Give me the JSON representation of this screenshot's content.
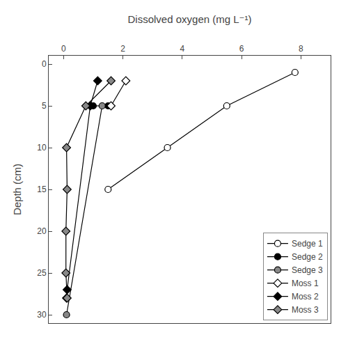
{
  "chart_data": {
    "type": "line",
    "xlabel": "Dissolved oxygen (mg L⁻¹)",
    "ylabel": "Depth (cm)",
    "xlim": [
      -0.5,
      9
    ],
    "ylim": [
      31,
      -1
    ],
    "xticks": [
      0,
      2,
      4,
      6,
      8
    ],
    "yticks": [
      0,
      5,
      10,
      15,
      20,
      25,
      30
    ],
    "grid": false,
    "legend": "lower right",
    "series": [
      {
        "name": "Sedge 1",
        "x": [
          7.8,
          5.5,
          3.5,
          1.5
        ],
        "values": [
          1,
          5,
          10,
          15
        ],
        "marker": "circle",
        "color": "white",
        "line_style": "solid"
      },
      {
        "name": "Sedge 2",
        "x": [
          1.5,
          1.0
        ],
        "values": [
          5,
          5
        ],
        "marker": "circle",
        "color": "black",
        "line_style": "solid"
      },
      {
        "name": "Sedge 3",
        "x": [
          1.3,
          0.1
        ],
        "values": [
          5,
          30
        ],
        "marker": "circle",
        "color": "#888888",
        "line_style": "solid"
      },
      {
        "name": "Moss 1",
        "x": [
          2.1,
          1.6
        ],
        "values": [
          2,
          5
        ],
        "marker": "diamond",
        "color": "white",
        "line_style": "solid"
      },
      {
        "name": "Moss 2",
        "x": [
          1.15,
          0.9,
          0.12,
          0.1
        ],
        "values": [
          2,
          5,
          27,
          28
        ],
        "marker": "diamond",
        "color": "black",
        "line_style": "solid"
      },
      {
        "name": "Moss 3",
        "x": [
          1.6,
          0.75,
          0.1,
          0.12,
          0.08,
          0.08,
          0.12
        ],
        "values": [
          2,
          5,
          10,
          15,
          20,
          25,
          28
        ],
        "marker": "diamond",
        "color": "#888888",
        "line_style": "solid"
      }
    ]
  }
}
